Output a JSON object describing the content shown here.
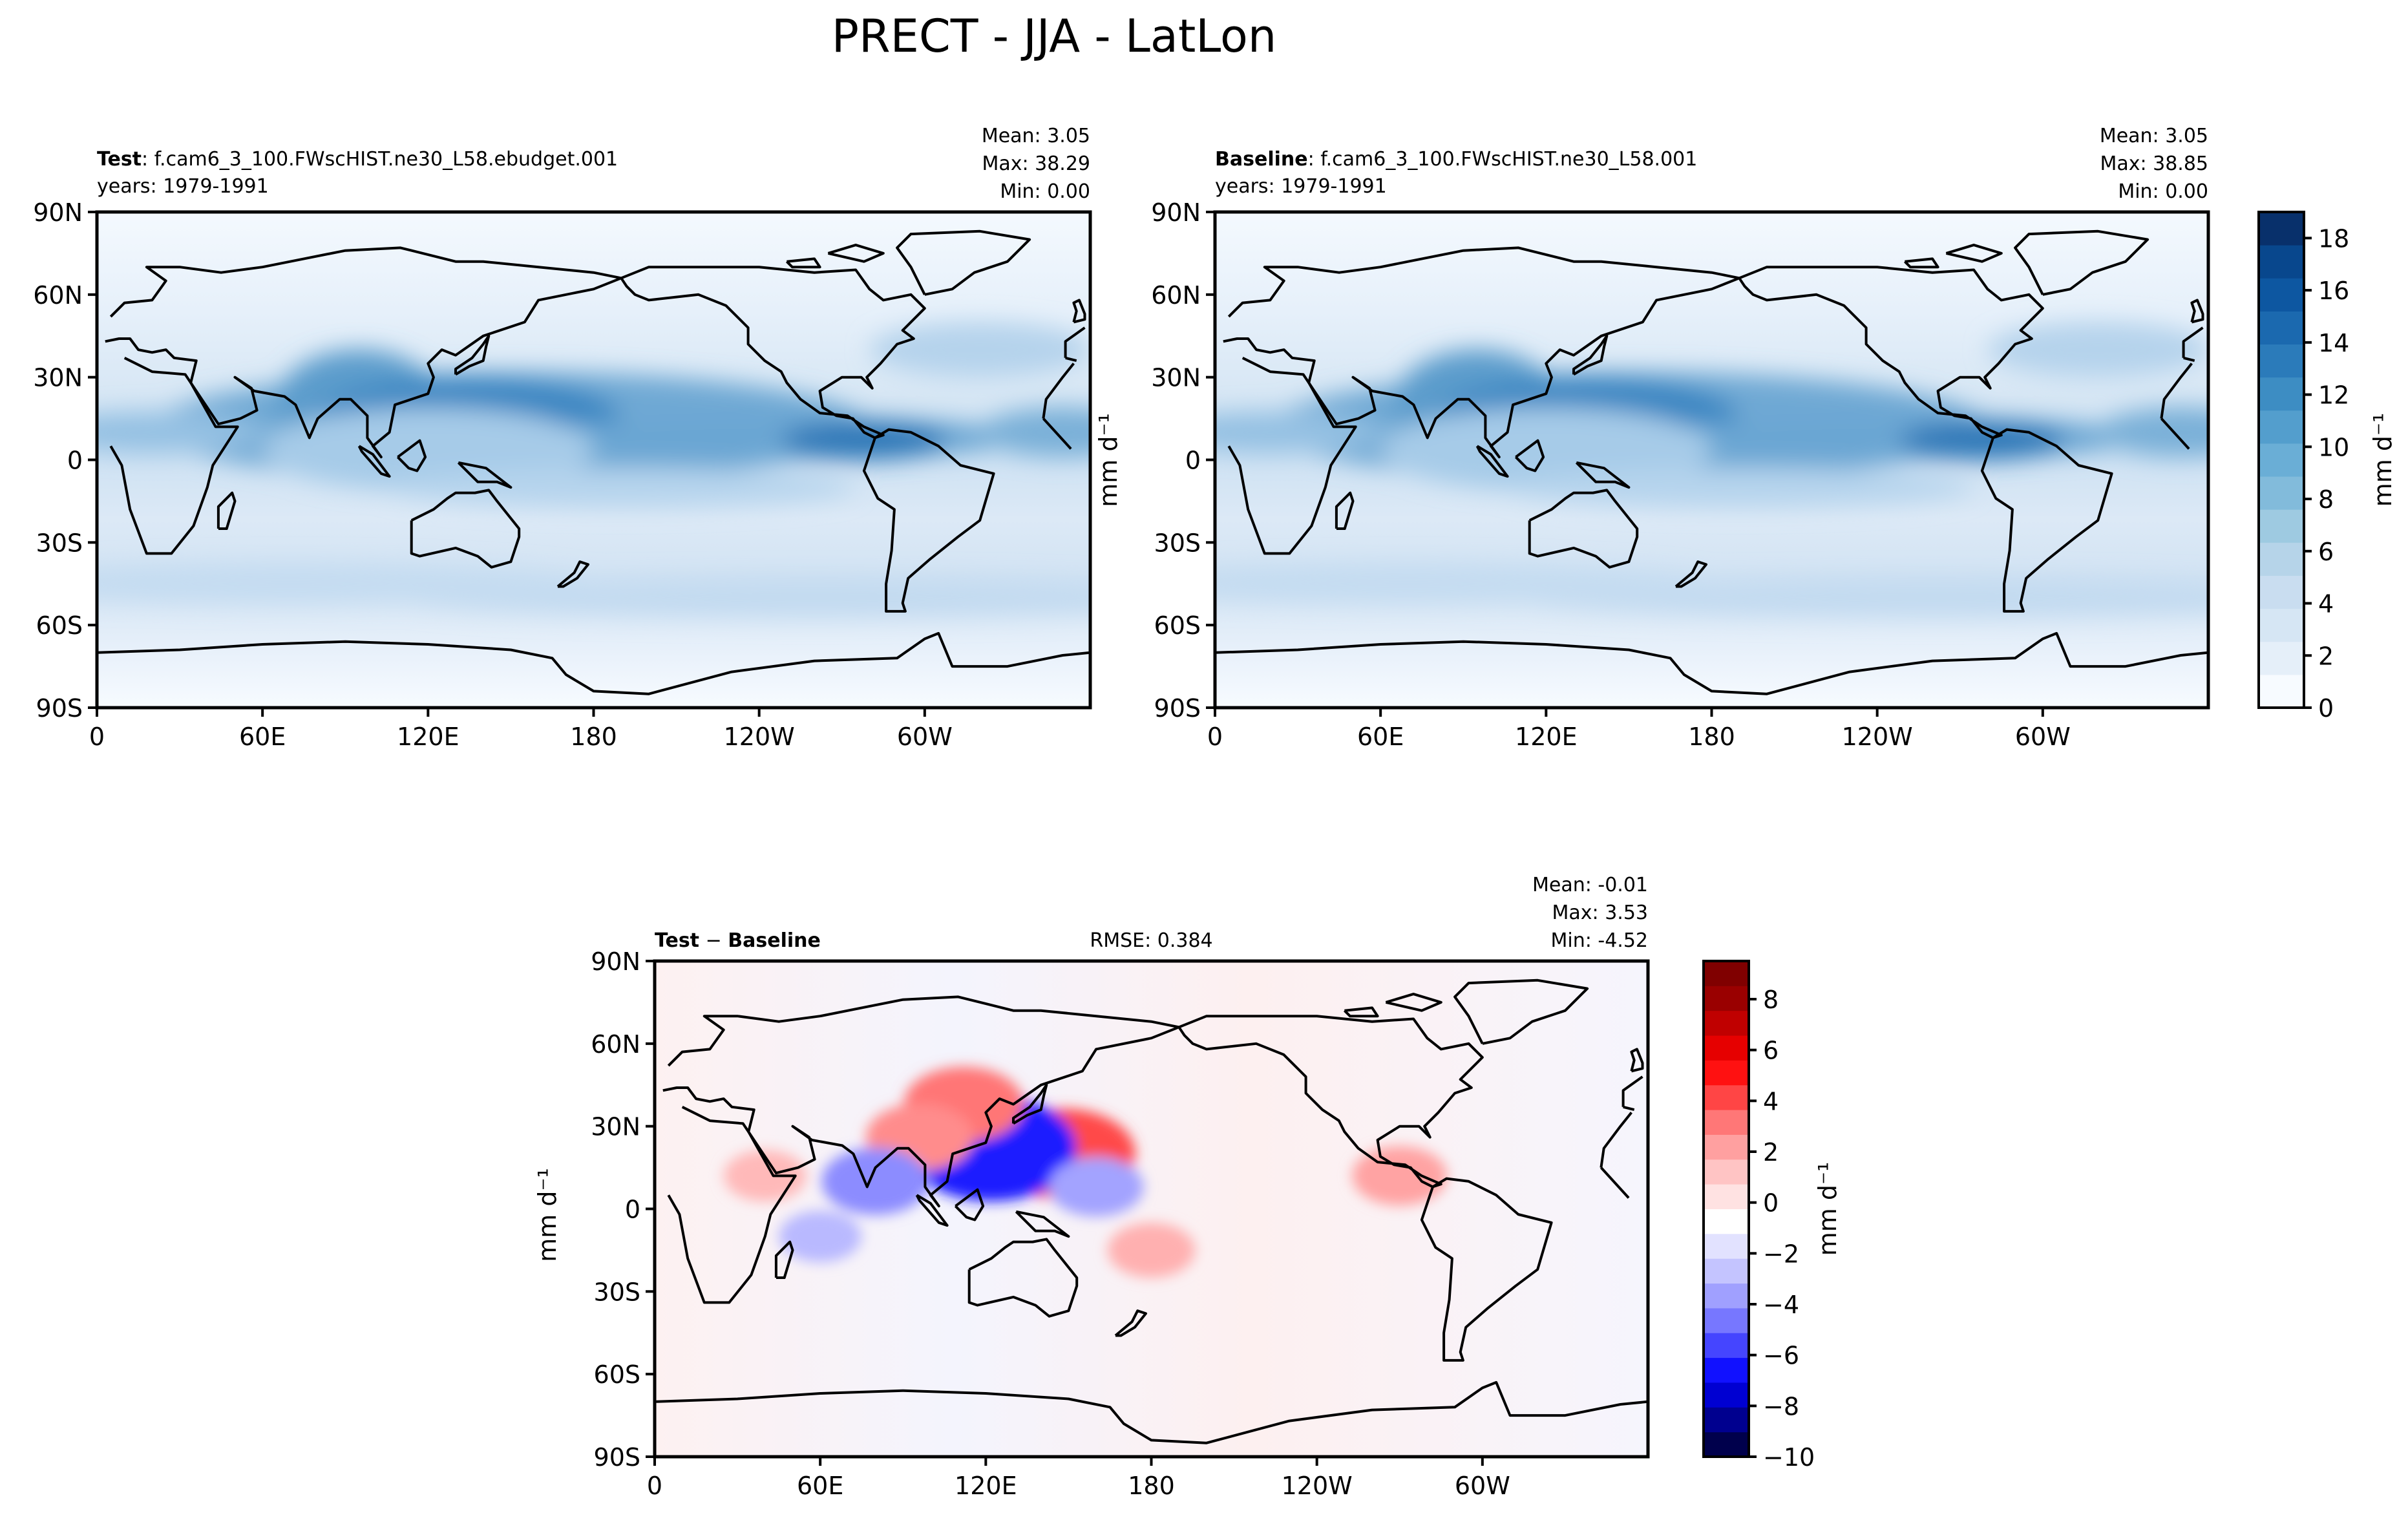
{
  "figure": {
    "title": "PRECT - JJA - LatLon"
  },
  "lon_ticks": [
    "0",
    "60E",
    "120E",
    "180",
    "120W",
    "60W"
  ],
  "lat_ticks": [
    "90N",
    "60N",
    "30N",
    "0",
    "30S",
    "60S",
    "90S"
  ],
  "chart_data": [
    {
      "type": "heatmap",
      "panel": "test",
      "label_bold": "Test",
      "label_rest": ": f.cam6_3_100.FWscHIST.ne30_L58.ebudget.001",
      "years": "years: 1979-1991",
      "stats": {
        "mean": "Mean:  3.05",
        "max": "Max: 38.29",
        "min": "Min:  0.00"
      },
      "ylabel": "",
      "xlim": [
        0,
        360
      ],
      "ylim": [
        -90,
        90
      ],
      "x_ticks": [
        0,
        60,
        120,
        180,
        240,
        300
      ],
      "y_ticks": [
        90,
        60,
        30,
        0,
        -30,
        -60,
        -90
      ],
      "colormap": "Blues"
    },
    {
      "type": "heatmap",
      "panel": "baseline",
      "label_bold": "Baseline",
      "label_rest": ": f.cam6_3_100.FWscHIST.ne30_L58.001",
      "years": "years: 1979-1991",
      "stats": {
        "mean": "Mean:  3.05",
        "max": "Max: 38.85",
        "min": "Min:  0.00"
      },
      "ylabel": "mm d⁻¹",
      "xlim": [
        0,
        360
      ],
      "ylim": [
        -90,
        90
      ],
      "x_ticks": [
        0,
        60,
        120,
        180,
        240,
        300
      ],
      "y_ticks": [
        90,
        60,
        30,
        0,
        -30,
        -60,
        -90
      ],
      "colormap": "Blues",
      "colorbar": {
        "label": "mm d⁻¹",
        "range": [
          0,
          19
        ],
        "ticks": [
          0,
          2,
          4,
          6,
          8,
          10,
          12,
          14,
          16,
          18
        ],
        "colors": [
          "#f7fbff",
          "#e5eff9",
          "#d6e6f4",
          "#c9ddf0",
          "#b6d4e9",
          "#9ecae1",
          "#82bbdb",
          "#6aaed6",
          "#539ecd",
          "#3d8dc3",
          "#2b7bba",
          "#1b69af",
          "#0d57a1",
          "#08478d",
          "#08306b"
        ]
      }
    },
    {
      "type": "heatmap",
      "panel": "difference",
      "label_bold": "Test",
      "label_mid": " − ",
      "label_bold2": "Baseline",
      "rmse": "RMSE: 0.384",
      "stats": {
        "mean": "Mean: -0.01",
        "max": "Max:  3.53",
        "min": "Min: -4.52"
      },
      "ylabel": "mm d⁻¹",
      "xlim": [
        0,
        360
      ],
      "ylim": [
        -90,
        90
      ],
      "x_ticks": [
        0,
        60,
        120,
        180,
        240,
        300
      ],
      "y_ticks": [
        90,
        60,
        30,
        0,
        -30,
        -60,
        -90
      ],
      "colormap": "seismic",
      "colorbar": {
        "label": "mm d⁻¹",
        "range": [
          -10,
          9.5
        ],
        "ticks": [
          -10,
          -8,
          -6,
          -4,
          -2,
          0,
          2,
          4,
          6,
          8
        ],
        "colors": [
          "#00004c",
          "#00008f",
          "#0000d2",
          "#1111ff",
          "#4545ff",
          "#7777ff",
          "#a0a0ff",
          "#c4c4ff",
          "#e2e2ff",
          "#ffffff",
          "#ffe2e2",
          "#ffc4c4",
          "#ffa0a0",
          "#ff7777",
          "#ff4545",
          "#ff1111",
          "#e60000",
          "#c00000",
          "#9a0000",
          "#800000"
        ]
      },
      "features": [
        {
          "lon": 148,
          "lat": 20,
          "delta": 3.5
        },
        {
          "lon": 122,
          "lat": 22,
          "delta": -4.5
        },
        {
          "lon": 112,
          "lat": 38,
          "delta": 2.5
        },
        {
          "lon": 96,
          "lat": 26,
          "delta": 2
        },
        {
          "lon": 80,
          "lat": 10,
          "delta": -2
        },
        {
          "lon": 160,
          "lat": 8,
          "delta": -1.5
        },
        {
          "lon": 180,
          "lat": -15,
          "delta": 1.2
        },
        {
          "lon": 270,
          "lat": 12,
          "delta": 1.5
        },
        {
          "lon": 60,
          "lat": -10,
          "delta": -1
        },
        {
          "lon": 40,
          "lat": 12,
          "delta": 1
        }
      ]
    }
  ]
}
